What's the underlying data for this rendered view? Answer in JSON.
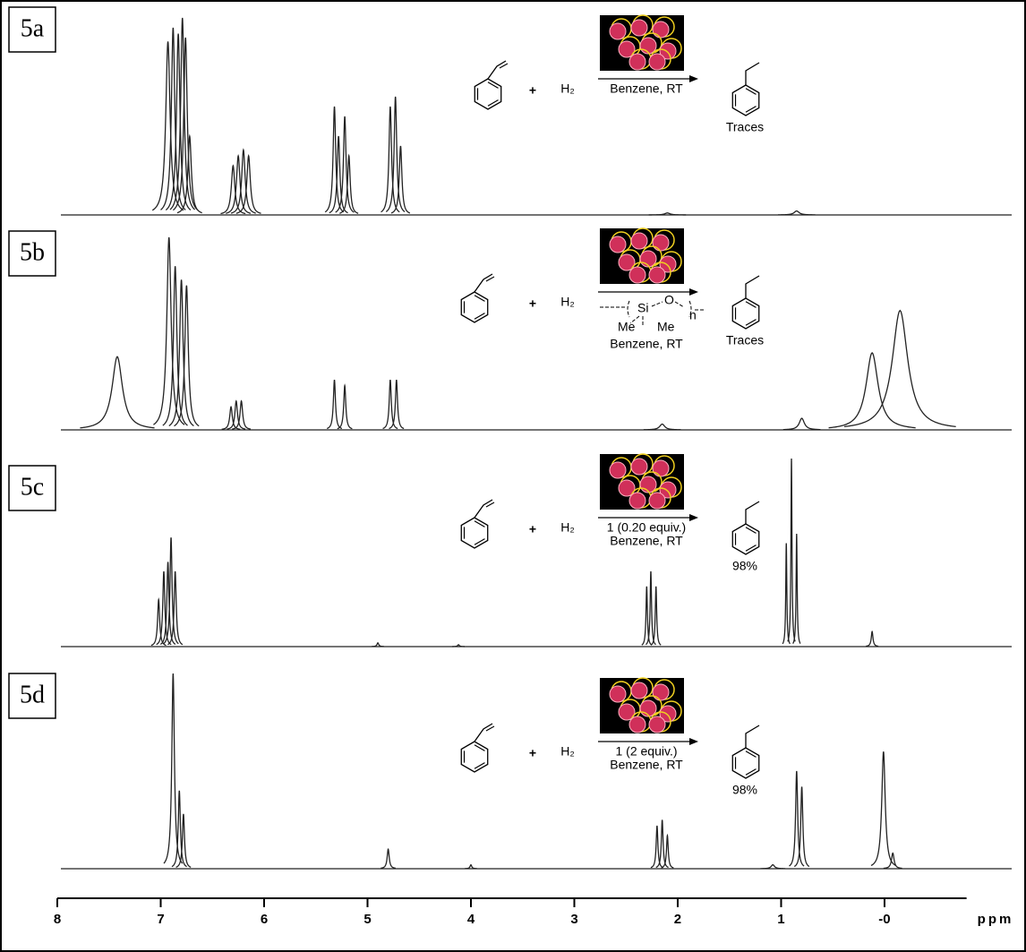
{
  "chart_data": {
    "type": "nmr",
    "x_label": "ppm",
    "xlim": [
      8,
      -0.75
    ],
    "xticks": [
      8,
      7,
      6,
      5,
      4,
      3,
      2,
      1,
      {
        "value": 0,
        "label": "-0"
      }
    ],
    "series": [
      {
        "name": "5a",
        "color": "#222222",
        "x": [
          6.93,
          6.88,
          6.83,
          6.79,
          6.76,
          6.72,
          6.3,
          6.25,
          6.2,
          6.15,
          5.32,
          5.28,
          5.22,
          5.18,
          4.78,
          4.73,
          4.68,
          2.1,
          0.85
        ],
        "values": [
          88,
          95,
          92,
          100,
          90,
          40,
          25,
          30,
          33,
          30,
          55,
          40,
          50,
          30,
          55,
          60,
          35,
          1,
          2
        ],
        "widths": [
          0.025,
          0.02,
          0.02,
          0.02,
          0.02,
          0.02,
          0.02,
          0.02,
          0.02,
          0.02,
          0.015,
          0.015,
          0.015,
          0.015,
          0.015,
          0.015,
          0.015,
          0.03,
          0.03
        ]
      },
      {
        "name": "5b",
        "color": "#222222",
        "x": [
          7.42,
          6.92,
          6.86,
          6.8,
          6.75,
          6.32,
          6.27,
          6.22,
          5.32,
          5.22,
          4.78,
          4.72,
          2.15,
          0.8,
          0.12,
          -0.15
        ],
        "values": [
          38,
          100,
          85,
          78,
          75,
          12,
          15,
          15,
          26,
          23,
          26,
          26,
          3,
          6,
          40,
          62
        ],
        "widths": [
          0.06,
          0.025,
          0.02,
          0.02,
          0.02,
          0.015,
          0.015,
          0.015,
          0.012,
          0.012,
          0.012,
          0.012,
          0.03,
          0.03,
          0.07,
          0.09
        ]
      },
      {
        "name": "5c",
        "color": "#222222",
        "x": [
          7.02,
          6.97,
          6.93,
          6.9,
          6.86,
          4.9,
          4.12,
          2.3,
          2.26,
          2.21,
          0.95,
          0.9,
          0.85,
          0.12
        ],
        "values": [
          25,
          40,
          45,
          58,
          40,
          2,
          1,
          32,
          40,
          32,
          55,
          100,
          60,
          8
        ],
        "widths": [
          0.012,
          0.012,
          0.012,
          0.012,
          0.012,
          0.01,
          0.01,
          0.008,
          0.008,
          0.008,
          0.006,
          0.006,
          0.006,
          0.01
        ]
      },
      {
        "name": "5d",
        "color": "#222222",
        "x": [
          6.88,
          6.82,
          6.78,
          4.8,
          4.0,
          2.2,
          2.15,
          2.1,
          1.08,
          0.85,
          0.8,
          0.01,
          -0.08
        ],
        "values": [
          100,
          40,
          28,
          10,
          2,
          22,
          25,
          17,
          2,
          50,
          42,
          60,
          8
        ],
        "widths": [
          0.015,
          0.012,
          0.012,
          0.012,
          0.01,
          0.01,
          0.01,
          0.01,
          0.02,
          0.012,
          0.012,
          0.02,
          0.015
        ]
      }
    ],
    "schemes": [
      {
        "plus": "+",
        "reagent": "H₂",
        "conditions": [
          "Benzene, RT"
        ],
        "product": "Traces"
      },
      {
        "plus": "+",
        "reagent": "H₂",
        "polymer": [
          "Si",
          "O",
          "n",
          "Me",
          "Me"
        ],
        "conditions": [
          "Benzene, RT"
        ],
        "product": "Traces"
      },
      {
        "plus": "+",
        "reagent": "H₂",
        "conditions": [
          "1 (0.20 equiv.)",
          "Benzene, RT"
        ],
        "product": "98%"
      },
      {
        "plus": "+",
        "reagent": "H₂",
        "conditions": [
          "1 (2 equiv.)",
          "Benzene, RT"
        ],
        "product": "98%"
      }
    ]
  }
}
